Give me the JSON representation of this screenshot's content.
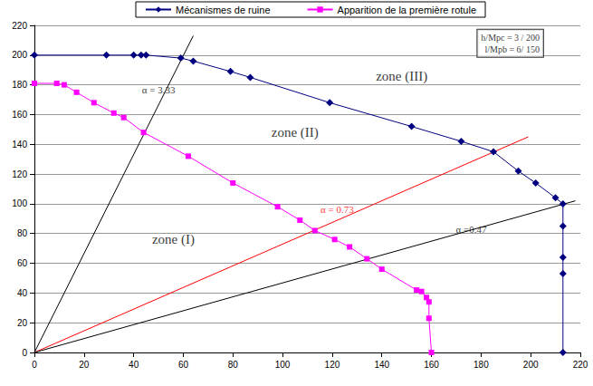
{
  "chart_data": {
    "type": "line",
    "legend": "top",
    "grid": "y",
    "xlim": [
      0,
      220
    ],
    "xticks": [
      0,
      20,
      40,
      60,
      80,
      100,
      120,
      140,
      160,
      180,
      200,
      220
    ],
    "ylim": [
      0,
      220
    ],
    "yticks": [
      0,
      20,
      40,
      60,
      80,
      100,
      120,
      140,
      160,
      180,
      200,
      220
    ],
    "series": [
      {
        "name": "Mécanismes de ruine",
        "color": "#000080",
        "marker": "diamond",
        "line_style": "solid",
        "x": [
          0,
          29,
          40,
          43,
          45,
          59,
          64,
          79,
          87,
          119,
          152,
          172,
          185,
          195,
          202,
          210,
          213,
          213,
          213,
          213,
          213
        ],
        "values": [
          200,
          200,
          200,
          200,
          200,
          198,
          196,
          189,
          185,
          168,
          152,
          142,
          135,
          122,
          114,
          104,
          100,
          85,
          64,
          53,
          0
        ]
      },
      {
        "name": "Apparition de la première rotule",
        "color": "#ff00ff",
        "marker": "square",
        "line_style": "solid",
        "x": [
          0,
          9,
          12,
          17,
          24,
          32,
          36,
          44,
          62,
          80,
          98,
          107,
          113,
          121,
          127,
          134,
          140,
          154,
          156,
          158,
          159,
          159,
          160
        ],
        "values": [
          181,
          181,
          180,
          175,
          168,
          161,
          158,
          148,
          132,
          114,
          98,
          89,
          82,
          76,
          71,
          63,
          56,
          42,
          41,
          37,
          34,
          23,
          0
        ]
      }
    ],
    "lines": [
      {
        "label": "α = 3.33",
        "color": "#000000",
        "x": [
          0,
          64
        ],
        "values": [
          0,
          213
        ],
        "label_x": 50,
        "label_y": 177
      },
      {
        "label": "α = 0.73",
        "color": "#ff0000",
        "x": [
          0,
          199
        ],
        "values": [
          0,
          145
        ],
        "label_x": 122,
        "label_y": 96
      },
      {
        "label": "α =0.47",
        "color": "#000000",
        "x": [
          0,
          218
        ],
        "values": [
          0,
          102
        ],
        "label_x": 176,
        "label_y": 83
      }
    ],
    "annotations": [
      {
        "text": "zone (I)",
        "x": 56,
        "y": 76,
        "color": "#000000"
      },
      {
        "text": "zone (II)",
        "x": 105,
        "y": 148,
        "color": "#000000"
      },
      {
        "text": "zone (III)",
        "x": 148,
        "y": 186,
        "color": "#000000"
      }
    ],
    "note": {
      "lines": [
        "h/Mpc = 3 / 200",
        "l/Mpb = 6/ 150"
      ],
      "x": 205,
      "y": 208
    }
  }
}
